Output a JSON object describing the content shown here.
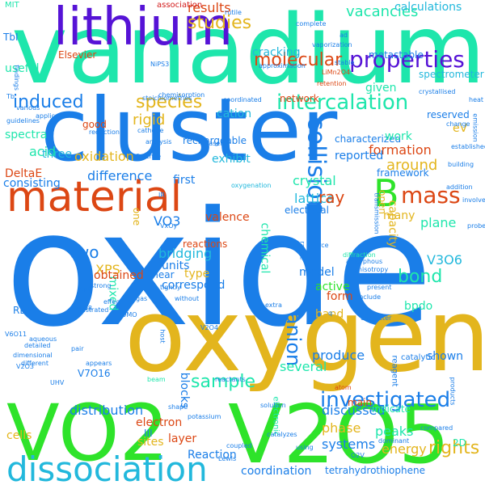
{
  "colors": {
    "teal": "#1ee6ac",
    "azure": "#1a7ee8",
    "gold": "#e3b51d",
    "green": "#2ee32a",
    "red": "#dc4714",
    "purple": "#5613d6",
    "lime": "#9ad21e",
    "cyan": "#22b8dc",
    "dark_red": "#d21a1a",
    "indigo": "#2b18c8",
    "olive": "#b5d015"
  },
  "words": [
    {
      "text": "oxide",
      "color": "azure"
    },
    {
      "text": "oxygen",
      "color": "gold"
    },
    {
      "text": "vanadium",
      "color": "teal"
    },
    {
      "text": "cluster",
      "color": "azure"
    },
    {
      "text": "V2O5",
      "color": "green"
    },
    {
      "text": "VO2",
      "color": "green"
    },
    {
      "text": "lithium",
      "color": "purple"
    },
    {
      "text": "material",
      "color": "red"
    },
    {
      "text": "dissociation",
      "color": "cyan"
    },
    {
      "text": "B",
      "color": "green"
    },
    {
      "text": "mass",
      "color": "red"
    },
    {
      "text": "collision",
      "color": "azure"
    },
    {
      "text": "intercalation",
      "color": "teal"
    },
    {
      "text": "properties",
      "color": "purple"
    },
    {
      "text": "induced",
      "color": "azure"
    },
    {
      "text": "species",
      "color": "gold"
    },
    {
      "text": "investigated",
      "color": "azure"
    },
    {
      "text": "anion",
      "color": "azure"
    },
    {
      "text": "molecular",
      "color": "red"
    },
    {
      "text": "studies",
      "color": "gold"
    },
    {
      "text": "results",
      "color": "red"
    },
    {
      "text": "vacancies",
      "color": "teal"
    },
    {
      "text": "calculations",
      "color": "cyan"
    },
    {
      "text": "association",
      "color": "dark_red"
    },
    {
      "text": "bond",
      "color": "teal"
    },
    {
      "text": "sample",
      "color": "teal"
    },
    {
      "text": "two",
      "color": "azure"
    },
    {
      "text": "acid",
      "color": "teal"
    },
    {
      "text": "spectra",
      "color": "teal"
    },
    {
      "text": "three",
      "color": "cyan"
    },
    {
      "text": "DeltaE",
      "color": "red"
    },
    {
      "text": "consisting",
      "color": "azure"
    },
    {
      "text": "oxidation",
      "color": "gold"
    },
    {
      "text": "rigid",
      "color": "gold"
    },
    {
      "text": "cation",
      "color": "cyan"
    },
    {
      "text": "difference",
      "color": "azure"
    },
    {
      "text": "formation",
      "color": "red"
    },
    {
      "text": "around",
      "color": "gold"
    },
    {
      "text": "reported",
      "color": "azure"
    },
    {
      "text": "crystal",
      "color": "teal"
    },
    {
      "text": "lattice",
      "color": "cyan"
    },
    {
      "text": "ray",
      "color": "red"
    },
    {
      "text": "framework",
      "color": "azure"
    },
    {
      "text": "plane",
      "color": "teal"
    },
    {
      "text": "V3O6",
      "color": "cyan"
    },
    {
      "text": "XPS",
      "color": "gold"
    },
    {
      "text": "mixed",
      "color": "teal"
    },
    {
      "text": "bridging",
      "color": "cyan"
    },
    {
      "text": "units",
      "color": "azure"
    },
    {
      "text": "model",
      "color": "azure"
    },
    {
      "text": "capacity",
      "color": "gold"
    },
    {
      "text": "active",
      "color": "green"
    },
    {
      "text": "form",
      "color": "red"
    },
    {
      "text": "band",
      "color": "gold"
    },
    {
      "text": "bpdo",
      "color": "teal"
    },
    {
      "text": "produce",
      "color": "azure"
    },
    {
      "text": "distribution",
      "color": "azure"
    },
    {
      "text": "discussed",
      "color": "azure"
    },
    {
      "text": "phase",
      "color": "gold"
    },
    {
      "text": "several",
      "color": "teal"
    },
    {
      "text": "systems",
      "color": "azure"
    },
    {
      "text": "energy",
      "color": "gold"
    },
    {
      "text": "peaks",
      "color": "teal"
    },
    {
      "text": "shown",
      "color": "azure"
    },
    {
      "text": "electron",
      "color": "red"
    },
    {
      "text": "sites",
      "color": "gold"
    },
    {
      "text": "layer",
      "color": "red"
    },
    {
      "text": "cells",
      "color": "gold"
    },
    {
      "text": "coordination",
      "color": "azure"
    },
    {
      "text": "tetrahydrothiophene",
      "color": "azure"
    },
    {
      "text": "rights",
      "color": "gold"
    },
    {
      "text": "Reaction",
      "color": "azure"
    },
    {
      "text": "eV",
      "color": "gold"
    },
    {
      "text": "reserved",
      "color": "azure"
    },
    {
      "text": "characterized",
      "color": "azure"
    },
    {
      "text": "work",
      "color": "teal"
    },
    {
      "text": "valence",
      "color": "red"
    },
    {
      "text": "many",
      "color": "gold"
    },
    {
      "text": "open",
      "color": "gold"
    },
    {
      "text": "first",
      "color": "azure"
    },
    {
      "text": "exhibit",
      "color": "cyan"
    },
    {
      "text": "rechargeable",
      "color": "azure"
    },
    {
      "text": "obtained",
      "color": "red"
    },
    {
      "text": "type",
      "color": "gold"
    },
    {
      "text": "correspond",
      "color": "azure"
    },
    {
      "text": "VO3",
      "color": "azure"
    },
    {
      "text": "V7O16",
      "color": "azure"
    },
    {
      "text": "cracking",
      "color": "cyan"
    },
    {
      "text": "useful",
      "color": "teal"
    },
    {
      "text": "good",
      "color": "red"
    },
    {
      "text": "electrical",
      "color": "azure"
    },
    {
      "text": "network",
      "color": "red"
    },
    {
      "text": "given",
      "color": "teal"
    },
    {
      "text": "metastable",
      "color": "azure"
    },
    {
      "text": "spectrometer",
      "color": "cyan"
    },
    {
      "text": "Elsevier",
      "color": "red"
    },
    {
      "text": "reactions",
      "color": "red"
    },
    {
      "text": "chemical",
      "color": "teal"
    },
    {
      "text": "reagent",
      "color": "azure"
    },
    {
      "text": "Reactivities",
      "color": "azure"
    },
    {
      "text": "catalytic",
      "color": "azure"
    },
    {
      "text": "2D",
      "color": "teal"
    },
    {
      "text": "main",
      "color": "red"
    },
    {
      "text": "indicate",
      "color": "teal"
    },
    {
      "text": "blocks",
      "color": "azure"
    },
    {
      "text": "shear",
      "color": "azure"
    },
    {
      "text": "RBM",
      "color": "azure"
    },
    {
      "text": "III",
      "color": "azure"
    },
    {
      "text": "TbI",
      "color": "azure"
    },
    {
      "text": "MIT",
      "color": "teal"
    },
    {
      "text": "Science",
      "color": "azure"
    },
    {
      "text": "stoichiometries",
      "color": "azure"
    },
    {
      "text": "chemisorption",
      "color": "azure"
    },
    {
      "text": "coordinated",
      "color": "azure"
    },
    {
      "text": "crystallised",
      "color": "azure"
    },
    {
      "text": "established",
      "color": "azure"
    },
    {
      "text": "oxygenation",
      "color": "cyan"
    },
    {
      "text": "electronic",
      "color": "teal"
    },
    {
      "text": "diffraction",
      "color": "teal"
    },
    {
      "text": "amorphous",
      "color": "azure"
    },
    {
      "text": "anisotropy",
      "color": "azure"
    },
    {
      "text": "complete",
      "color": "azure"
    },
    {
      "text": "stable",
      "color": "azure"
    },
    {
      "text": "rutile",
      "color": "azure"
    },
    {
      "text": "retention",
      "color": "red"
    },
    {
      "text": "LiMn2O4",
      "color": "red"
    },
    {
      "text": "application",
      "color": "azure"
    },
    {
      "text": "guidelines",
      "color": "azure"
    },
    {
      "text": "reduction",
      "color": "azure"
    },
    {
      "text": "cathode",
      "color": "azure"
    },
    {
      "text": "analysis",
      "color": "azure"
    },
    {
      "text": "laser",
      "color": "azure"
    },
    {
      "text": "strong",
      "color": "azure"
    },
    {
      "text": "effect",
      "color": "azure"
    },
    {
      "text": "illustrated",
      "color": "azure"
    },
    {
      "text": "tightly",
      "color": "azure"
    },
    {
      "text": "without",
      "color": "azure"
    },
    {
      "text": "include",
      "color": "azure"
    },
    {
      "text": "present",
      "color": "azure"
    },
    {
      "text": "character",
      "color": "azure"
    },
    {
      "text": "extra",
      "color": "azure"
    },
    {
      "text": "aqueous",
      "color": "azure"
    },
    {
      "text": "dimensional",
      "color": "azure"
    },
    {
      "text": "different",
      "color": "azure"
    },
    {
      "text": "detailed",
      "color": "azure"
    },
    {
      "text": "appears",
      "color": "azure"
    },
    {
      "text": "pair",
      "color": "azure"
    },
    {
      "text": "beam",
      "color": "teal"
    },
    {
      "text": "potassium",
      "color": "azure"
    },
    {
      "text": "shape",
      "color": "azure"
    },
    {
      "text": "solution",
      "color": "azure"
    },
    {
      "text": "atom",
      "color": "red"
    },
    {
      "text": "catalyzes",
      "color": "azure"
    },
    {
      "text": "using",
      "color": "azure"
    },
    {
      "text": "dominant",
      "color": "azure"
    },
    {
      "text": "compared",
      "color": "azure"
    },
    {
      "text": "Lewis",
      "color": "azure"
    },
    {
      "text": "coupled",
      "color": "azure"
    },
    {
      "text": "reactants",
      "color": "azure"
    },
    {
      "text": "vaporization",
      "color": "azure"
    },
    {
      "text": "approximation",
      "color": "azure"
    },
    {
      "text": "addition",
      "color": "azure"
    },
    {
      "text": "emission",
      "color": "azure"
    },
    {
      "text": "change",
      "color": "azure"
    },
    {
      "text": "building",
      "color": "azure"
    },
    {
      "text": "involves",
      "color": "azure"
    },
    {
      "text": "desirable",
      "color": "azure"
    },
    {
      "text": "probe",
      "color": "azure"
    },
    {
      "text": "transmission",
      "color": "azure"
    },
    {
      "text": "source",
      "color": "azure"
    },
    {
      "text": "products",
      "color": "azure"
    },
    {
      "text": "host",
      "color": "azure"
    },
    {
      "text": "various",
      "color": "azure"
    },
    {
      "text": "findings",
      "color": "azure"
    },
    {
      "text": "one",
      "color": "gold"
    },
    {
      "text": "V2O4",
      "color": "azure"
    },
    {
      "text": "V4O8",
      "color": "azure"
    },
    {
      "text": "V6O11",
      "color": "azure"
    },
    {
      "text": "VxOy",
      "color": "azure"
    },
    {
      "text": "V2O3",
      "color": "azure"
    },
    {
      "text": "NiPS3",
      "color": "azure"
    },
    {
      "text": "HOMO",
      "color": "azure"
    },
    {
      "text": "UHV",
      "color": "azure"
    },
    {
      "text": "gas",
      "color": "azure"
    },
    {
      "text": "IR",
      "color": "azure"
    },
    {
      "text": "Tb",
      "color": "azure"
    },
    {
      "text": "ApO",
      "color": "azure"
    },
    {
      "text": "O2V",
      "color": "azure"
    },
    {
      "text": "q",
      "color": "azure"
    },
    {
      "text": "ad",
      "color": "azure"
    },
    {
      "text": "range",
      "color": "azure"
    },
    {
      "text": "heat",
      "color": "azure"
    }
  ]
}
